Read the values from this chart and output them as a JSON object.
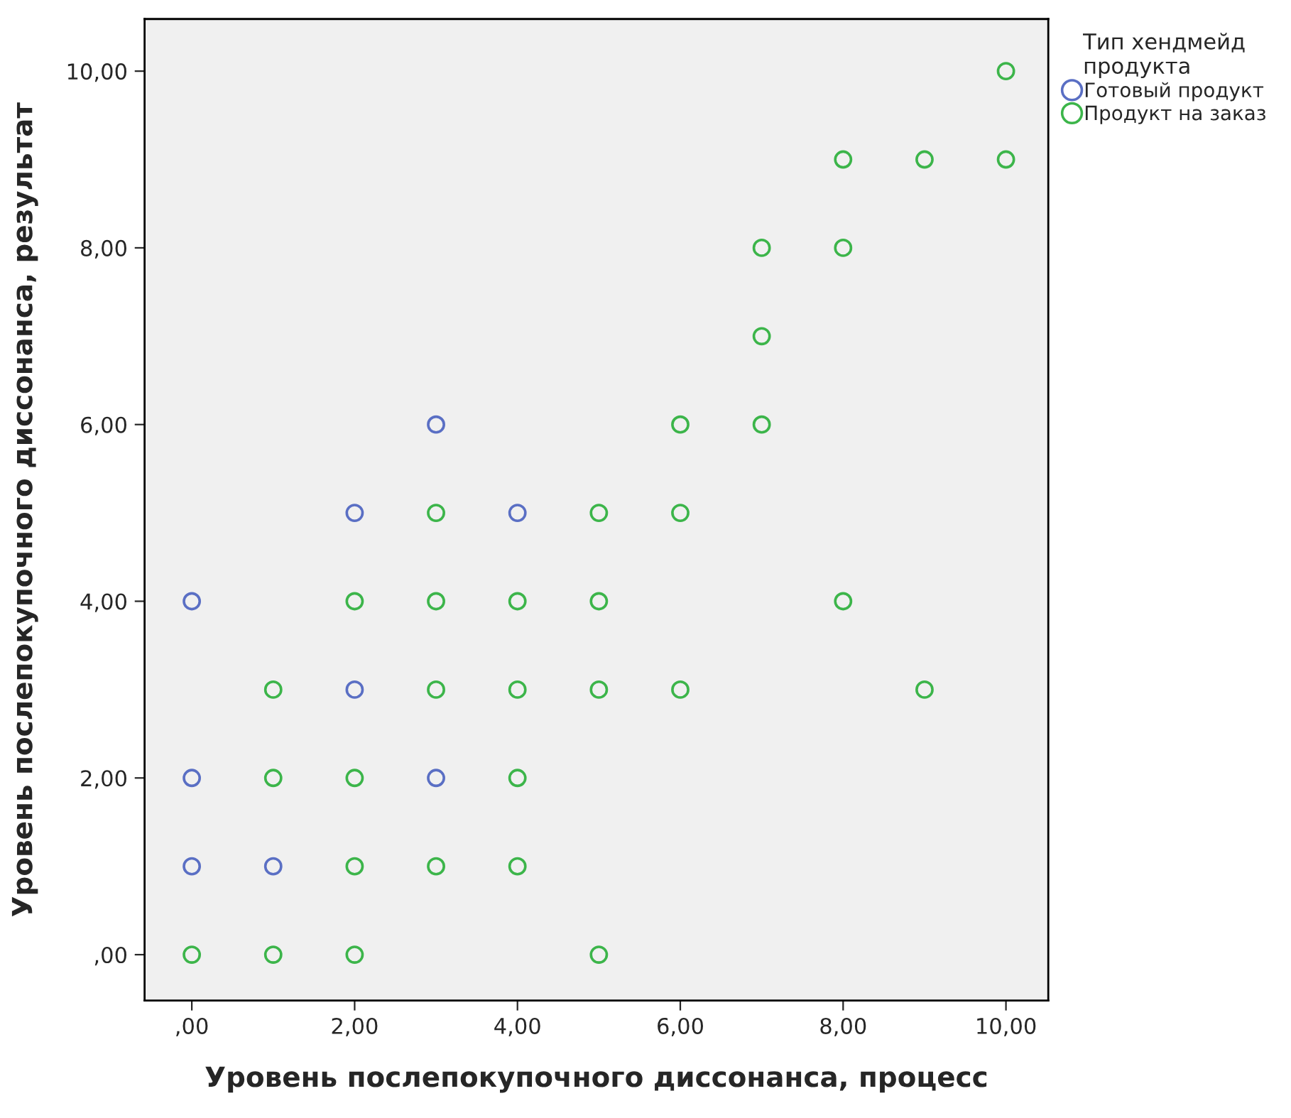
{
  "chart_data": {
    "type": "scatter",
    "xlabel": "Уровень послепокупочного диссонанса, процесс",
    "ylabel": "Уровень послепокупочного диссонанса, результат",
    "legend_title": "Тип хендмейд\nпродукта",
    "series": [
      {
        "name": "Готовый продукт",
        "color": "#5a6fc4",
        "x": [
          0,
          2,
          3,
          4,
          2,
          0,
          3,
          0,
          1
        ],
        "values": [
          4,
          5,
          6,
          5,
          3,
          2,
          2,
          1,
          1
        ]
      },
      {
        "name": "Продукт на заказ",
        "color": "#3cb54a",
        "x": [
          0,
          1,
          2,
          5,
          2,
          3,
          4,
          1,
          2,
          4,
          1,
          3,
          4,
          5,
          6,
          9,
          2,
          3,
          4,
          5,
          8,
          3,
          5,
          6,
          6,
          7,
          7,
          7,
          8,
          8,
          9,
          10,
          10
        ],
        "values": [
          0,
          0,
          0,
          0,
          1,
          1,
          1,
          2,
          2,
          2,
          3,
          3,
          3,
          3,
          3,
          3,
          4,
          4,
          4,
          4,
          4,
          5,
          5,
          5,
          6,
          6,
          7,
          8,
          8,
          9,
          9,
          9,
          10
        ]
      }
    ],
    "xlim": [
      -0.58,
      10.52
    ],
    "ylim": [
      -0.52,
      10.59
    ],
    "xticks": [
      {
        "value": 0,
        "label": ",00"
      },
      {
        "value": 2,
        "label": "2,00"
      },
      {
        "value": 4,
        "label": "4,00"
      },
      {
        "value": 6,
        "label": "6,00"
      },
      {
        "value": 8,
        "label": "8,00"
      },
      {
        "value": 10,
        "label": "10,00"
      }
    ],
    "yticks": [
      {
        "value": 0,
        "label": ",00"
      },
      {
        "value": 2,
        "label": "2,00"
      },
      {
        "value": 4,
        "label": "4,00"
      },
      {
        "value": 6,
        "label": "6,00"
      },
      {
        "value": 8,
        "label": "8,00"
      },
      {
        "value": 10,
        "label": "10,00"
      }
    ],
    "marker": "circle",
    "grid": false,
    "legend": "top right"
  }
}
